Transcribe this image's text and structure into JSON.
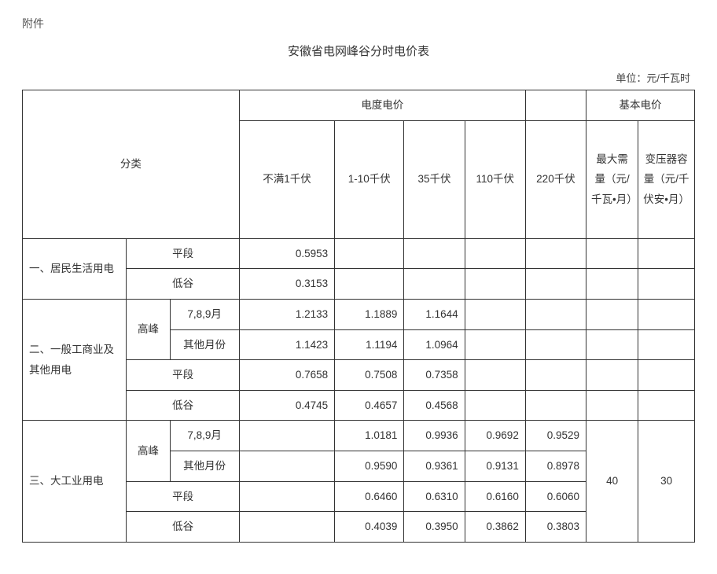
{
  "attachment_label": "附件",
  "title": "安徽省电网峰谷分时电价表",
  "unit_label": "单位：元/千瓦时",
  "headers": {
    "category": "分类",
    "energy_price": "电度电价",
    "basic_price": "基本电价",
    "v1": "不满1千伏",
    "v2": "1-10千伏",
    "v3": "35千伏",
    "v4": "110千伏",
    "v5": "220千伏",
    "b1": "最大需量（元/千瓦•月）",
    "b2": "变压器容量（元/千伏安•月）"
  },
  "labels": {
    "cat1": "一、居民生活用电",
    "cat2": "二、一般工商业及其他用电",
    "cat3": "三、大工业用电",
    "peak": "高峰",
    "flat": "平段",
    "valley": "低谷",
    "months_789": "7,8,9月",
    "months_other": "其他月份"
  },
  "rows": {
    "r1": {
      "v1": "0.5953"
    },
    "r2": {
      "v1": "0.3153"
    },
    "r3": {
      "v1": "1.2133",
      "v2": "1.1889",
      "v3": "1.1644"
    },
    "r4": {
      "v1": "1.1423",
      "v2": "1.1194",
      "v3": "1.0964"
    },
    "r5": {
      "v1": "0.7658",
      "v2": "0.7508",
      "v3": "0.7358"
    },
    "r6": {
      "v1": "0.4745",
      "v2": "0.4657",
      "v3": "0.4568"
    },
    "r7": {
      "v2": "1.0181",
      "v3": "0.9936",
      "v4": "0.9692",
      "v5": "0.9529"
    },
    "r8": {
      "v2": "0.9590",
      "v3": "0.9361",
      "v4": "0.9131",
      "v5": "0.8978"
    },
    "r9": {
      "v2": "0.6460",
      "v3": "0.6310",
      "v4": "0.6160",
      "v5": "0.6060"
    },
    "r10": {
      "v2": "0.4039",
      "v3": "0.3950",
      "v4": "0.3862",
      "v5": "0.3803"
    }
  },
  "basic": {
    "b1": "40",
    "b2": "30"
  }
}
